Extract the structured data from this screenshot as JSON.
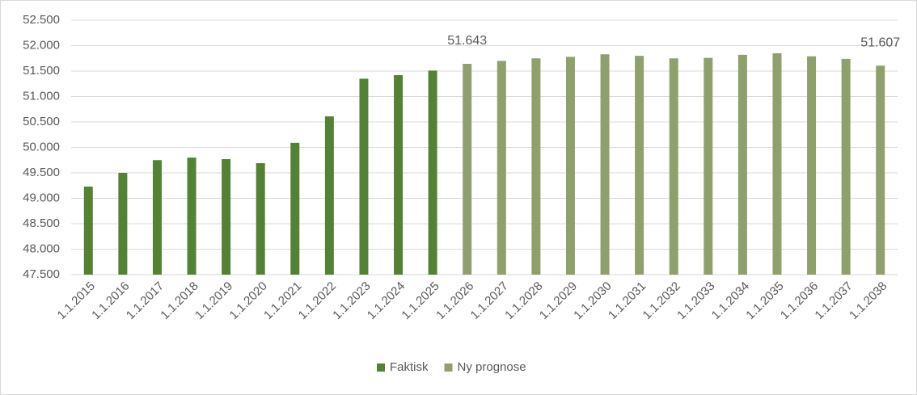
{
  "chart_data": {
    "type": "bar",
    "categories": [
      "1.1.2015",
      "1.1.2016",
      "1.1.2017",
      "1.1.2018",
      "1.1.2019",
      "1.1.2020",
      "1.1.2021",
      "1.1.2022",
      "1.1.2023",
      "1.1.2024",
      "1.1.2025",
      "1.1.2026",
      "1.1.2027",
      "1.1.2028",
      "1.1.2029",
      "1.1.2030",
      "1.1.2031",
      "1.1.2032",
      "1.1.2033",
      "1.1.2034",
      "1.1.2035",
      "1.1.2036",
      "1.1.2037",
      "1.1.2038"
    ],
    "series": [
      {
        "name": "Faktisk",
        "color": "#548235",
        "values": [
          49230,
          49500,
          49750,
          49800,
          49770,
          49690,
          50090,
          50610,
          51350,
          51420,
          51510,
          null,
          null,
          null,
          null,
          null,
          null,
          null,
          null,
          null,
          null,
          null,
          null,
          null
        ]
      },
      {
        "name": "Ny prognose",
        "color": "#8fa06c",
        "values": [
          null,
          null,
          null,
          null,
          null,
          null,
          null,
          null,
          null,
          null,
          null,
          51643,
          51700,
          51750,
          51780,
          51830,
          51800,
          51750,
          51760,
          51820,
          51850,
          51790,
          51740,
          51607
        ],
        "value_labels": [
          null,
          null,
          null,
          null,
          null,
          null,
          null,
          null,
          null,
          null,
          null,
          "51.643",
          null,
          null,
          null,
          null,
          null,
          null,
          null,
          null,
          null,
          null,
          null,
          "51.607"
        ]
      }
    ],
    "ylim": [
      47500,
      52500
    ],
    "yticks": [
      {
        "value": 47500,
        "label": "47.500"
      },
      {
        "value": 48000,
        "label": "48.000"
      },
      {
        "value": 48500,
        "label": "48.500"
      },
      {
        "value": 49000,
        "label": "49.000"
      },
      {
        "value": 49500,
        "label": "49.500"
      },
      {
        "value": 50000,
        "label": "50.000"
      },
      {
        "value": 50500,
        "label": "50.500"
      },
      {
        "value": 51000,
        "label": "51.000"
      },
      {
        "value": 51500,
        "label": "51.500"
      },
      {
        "value": 52000,
        "label": "52.000"
      },
      {
        "value": 52500,
        "label": "52.500"
      }
    ],
    "grid": true,
    "legend": "bottom"
  }
}
